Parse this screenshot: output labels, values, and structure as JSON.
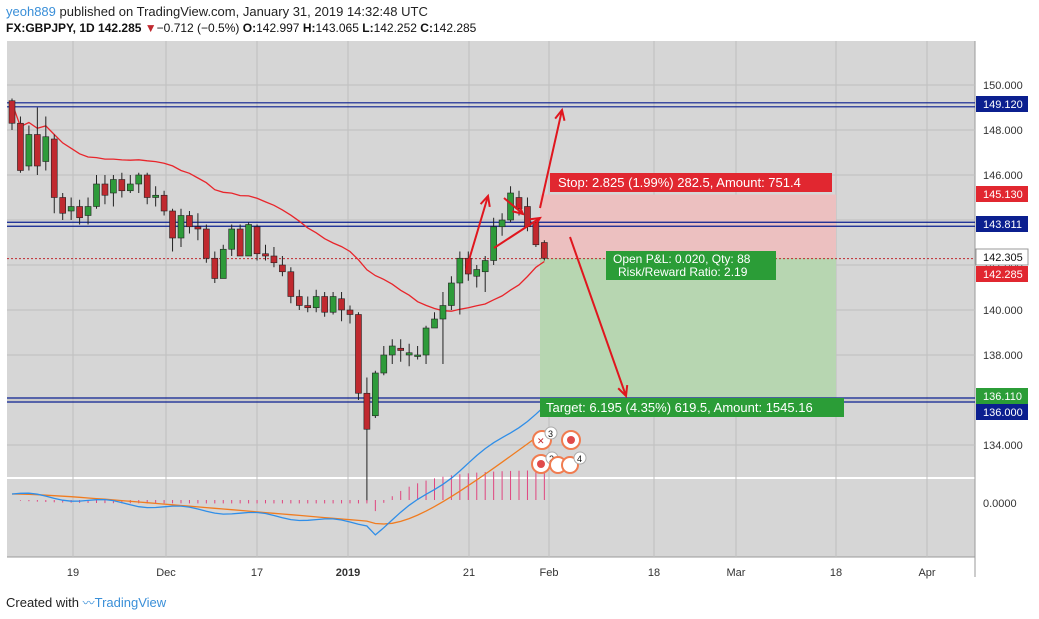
{
  "header": {
    "user": "yeoh889",
    "published": "published on TradingView.com, January 31, 2019 14:32:48 UTC",
    "symbol": "FX:GBPJPY, 1D",
    "last": "142.285",
    "change_arrow": "▼",
    "change": "−0.712 (−0.5%)",
    "o_label": "O:",
    "o_val": "142.997",
    "h_label": "H:",
    "h_val": "143.065",
    "l_label": "L:",
    "l_val": "142.252",
    "c_label": "C:",
    "c_val": "142.285"
  },
  "footer": {
    "created": "Created with",
    "brand": "TradingView"
  },
  "colors": {
    "up": "#2e9b3a",
    "down": "#c0292f",
    "ma": "#e8252b",
    "stop_zone": "#ecc0c0",
    "target_zone": "#b7d6b1",
    "level_line": "#0b1f8f",
    "macd": "#2f8ee8",
    "signal": "#f07c20",
    "hist": "#e0457f",
    "grid": "#bfbfbf",
    "bg": "#d6d6d6"
  },
  "chart_data": {
    "type": "candlestick",
    "y_ticks": [
      "150.000",
      "148.000",
      "146.000",
      "144.000",
      "142.000",
      "140.000",
      "138.000",
      "136.000",
      "134.000"
    ],
    "x_ticks": [
      "19",
      "Dec",
      "17",
      "2019",
      "21",
      "Feb",
      "18",
      "Mar",
      "18",
      "Apr"
    ],
    "macd_tick": "0.0000",
    "price_labels": [
      {
        "text": "149.120",
        "type": "level"
      },
      {
        "text": "145.130",
        "type": "stop"
      },
      {
        "text": "143.811",
        "type": "level"
      },
      {
        "text": "142.305",
        "type": "entry"
      },
      {
        "text": "142.285",
        "type": "last"
      },
      {
        "text": "136.110",
        "type": "target"
      },
      {
        "text": "136.000",
        "type": "level"
      }
    ],
    "levels": [
      149.12,
      143.811,
      136.0
    ],
    "position": {
      "stop_text": "Stop: 2.825 (1.99%) 282.5, Amount: 751.4",
      "target_text": "Target: 6.195 (4.35%) 619.5, Amount: 1545.16",
      "pnl_text": "Open P&L: 0.020, Qty: 88",
      "rr_text": "Risk/Reward Ratio: 2.19",
      "entry": 142.305,
      "stop": 145.13,
      "target": 136.11
    },
    "events": [
      "3",
      "2",
      "4"
    ],
    "candles": [
      [
        149.3,
        148.3,
        149.4,
        148.0
      ],
      [
        148.3,
        146.2,
        148.6,
        146.1
      ],
      [
        146.4,
        147.8,
        148.2,
        146.2
      ],
      [
        147.8,
        146.4,
        149.0,
        146.0
      ],
      [
        146.6,
        147.7,
        148.6,
        146.2
      ],
      [
        147.6,
        145.0,
        147.8,
        144.3
      ],
      [
        145.0,
        144.3,
        145.2,
        144.0
      ],
      [
        144.4,
        144.6,
        145.0,
        144.0
      ],
      [
        144.6,
        144.1,
        144.9,
        143.8
      ],
      [
        144.2,
        144.6,
        145.0,
        143.8
      ],
      [
        144.6,
        145.6,
        146.0,
        144.5
      ],
      [
        145.6,
        145.1,
        146.0,
        144.7
      ],
      [
        145.2,
        145.8,
        146.0,
        144.6
      ],
      [
        145.8,
        145.3,
        146.1,
        145.0
      ],
      [
        145.3,
        145.6,
        146.0,
        145.2
      ],
      [
        145.6,
        146.0,
        146.1,
        145.2
      ],
      [
        146.0,
        145.0,
        146.1,
        144.7
      ],
      [
        145.0,
        145.1,
        145.5,
        144.6
      ],
      [
        145.1,
        144.4,
        145.3,
        144.2
      ],
      [
        144.4,
        143.2,
        144.5,
        142.6
      ],
      [
        143.2,
        144.2,
        144.5,
        142.8
      ],
      [
        144.2,
        143.7,
        144.4,
        143.4
      ],
      [
        143.7,
        143.6,
        144.3,
        143.1
      ],
      [
        143.6,
        142.3,
        143.8,
        142.1
      ],
      [
        142.3,
        141.4,
        142.6,
        141.2
      ],
      [
        141.4,
        142.7,
        142.9,
        141.4
      ],
      [
        142.7,
        143.6,
        143.8,
        142.4
      ],
      [
        143.6,
        142.4,
        143.8,
        142.4
      ],
      [
        142.4,
        143.8,
        143.9,
        142.4
      ],
      [
        143.7,
        142.5,
        143.8,
        142.2
      ],
      [
        142.5,
        142.4,
        142.9,
        142.2
      ],
      [
        142.4,
        142.1,
        142.8,
        141.9
      ],
      [
        142.0,
        141.7,
        142.4,
        141.5
      ],
      [
        141.7,
        140.6,
        141.9,
        140.3
      ],
      [
        140.6,
        140.2,
        140.9,
        140.0
      ],
      [
        140.2,
        140.1,
        140.6,
        139.9
      ],
      [
        140.1,
        140.6,
        140.9,
        139.9
      ],
      [
        140.6,
        139.9,
        140.8,
        139.7
      ],
      [
        139.9,
        140.6,
        140.8,
        139.8
      ],
      [
        140.5,
        140.0,
        140.8,
        139.5
      ],
      [
        140.0,
        139.8,
        140.2,
        139.4
      ],
      [
        139.8,
        136.3,
        139.9,
        136.0
      ],
      [
        136.3,
        134.7,
        137.0,
        131.5
      ],
      [
        135.3,
        137.2,
        137.3,
        135.2
      ],
      [
        137.2,
        138.0,
        138.4,
        137.1
      ],
      [
        138.0,
        138.4,
        138.7,
        137.6
      ],
      [
        138.3,
        138.2,
        138.7,
        137.7
      ],
      [
        138.0,
        138.1,
        138.5,
        137.5
      ],
      [
        138.0,
        138.0,
        138.4,
        137.8
      ],
      [
        138.0,
        139.2,
        139.3,
        137.6
      ],
      [
        139.2,
        139.6,
        139.9,
        139.2
      ],
      [
        139.6,
        140.2,
        140.8,
        137.6
      ],
      [
        140.2,
        141.2,
        141.5,
        140.0
      ],
      [
        141.2,
        142.3,
        142.6,
        139.8
      ],
      [
        142.3,
        141.6,
        142.6,
        141.3
      ],
      [
        141.5,
        141.8,
        142.0,
        141.0
      ],
      [
        141.7,
        142.2,
        142.4,
        140.8
      ],
      [
        142.2,
        143.7,
        144.1,
        142.0
      ],
      [
        143.7,
        144.0,
        144.3,
        143.3
      ],
      [
        144.0,
        145.2,
        145.5,
        143.9
      ],
      [
        145.0,
        144.5,
        145.3,
        144.2
      ],
      [
        144.6,
        143.7,
        145.0,
        143.5
      ],
      [
        143.9,
        142.9,
        143.9,
        142.8
      ],
      [
        143.0,
        142.3,
        143.1,
        142.2
      ]
    ]
  }
}
